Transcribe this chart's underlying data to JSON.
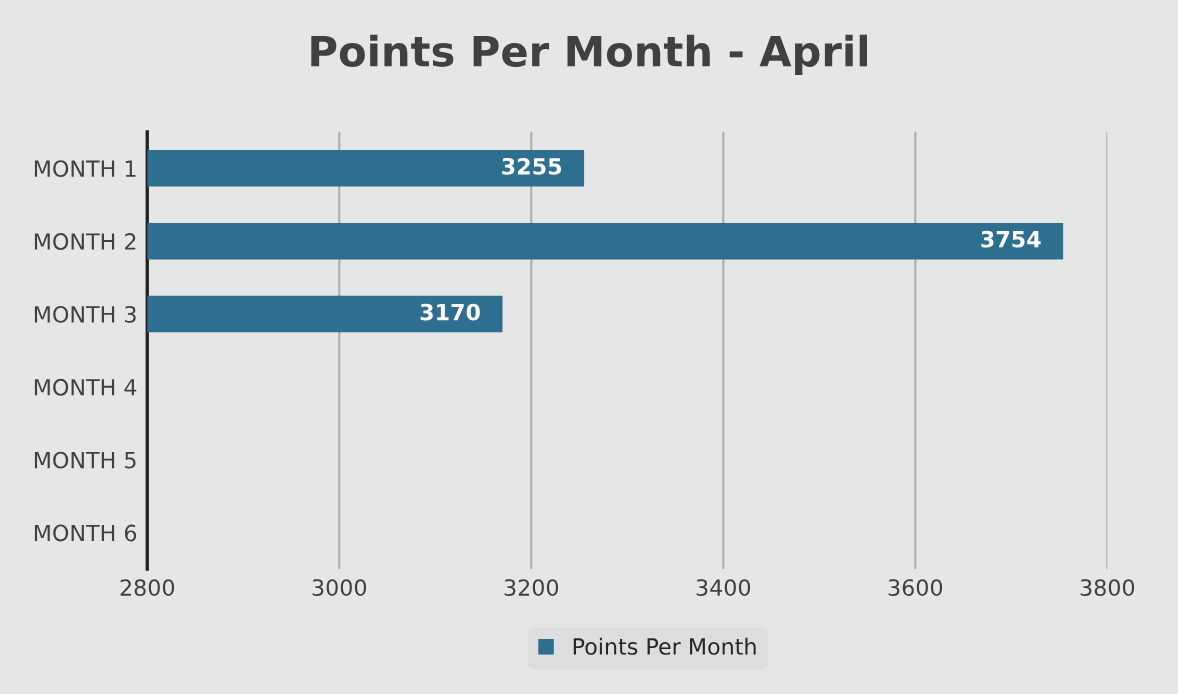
{
  "chart_data": {
    "type": "bar",
    "orientation": "horizontal",
    "title": "Points Per Month - April",
    "categories": [
      "MONTH 1",
      "MONTH 2",
      "MONTH 3",
      "MONTH 4",
      "MONTH 5",
      "MONTH 6"
    ],
    "series": [
      {
        "name": "Points Per Month",
        "color": "#2e6e8e",
        "values": [
          3255,
          3754,
          3170,
          null,
          null,
          null
        ]
      }
    ],
    "xlim": [
      2800,
      3800
    ],
    "xticks": [
      2800,
      3000,
      3200,
      3400,
      3600,
      3800
    ],
    "grid": "x",
    "legend": "bottom",
    "data_labels": true
  }
}
